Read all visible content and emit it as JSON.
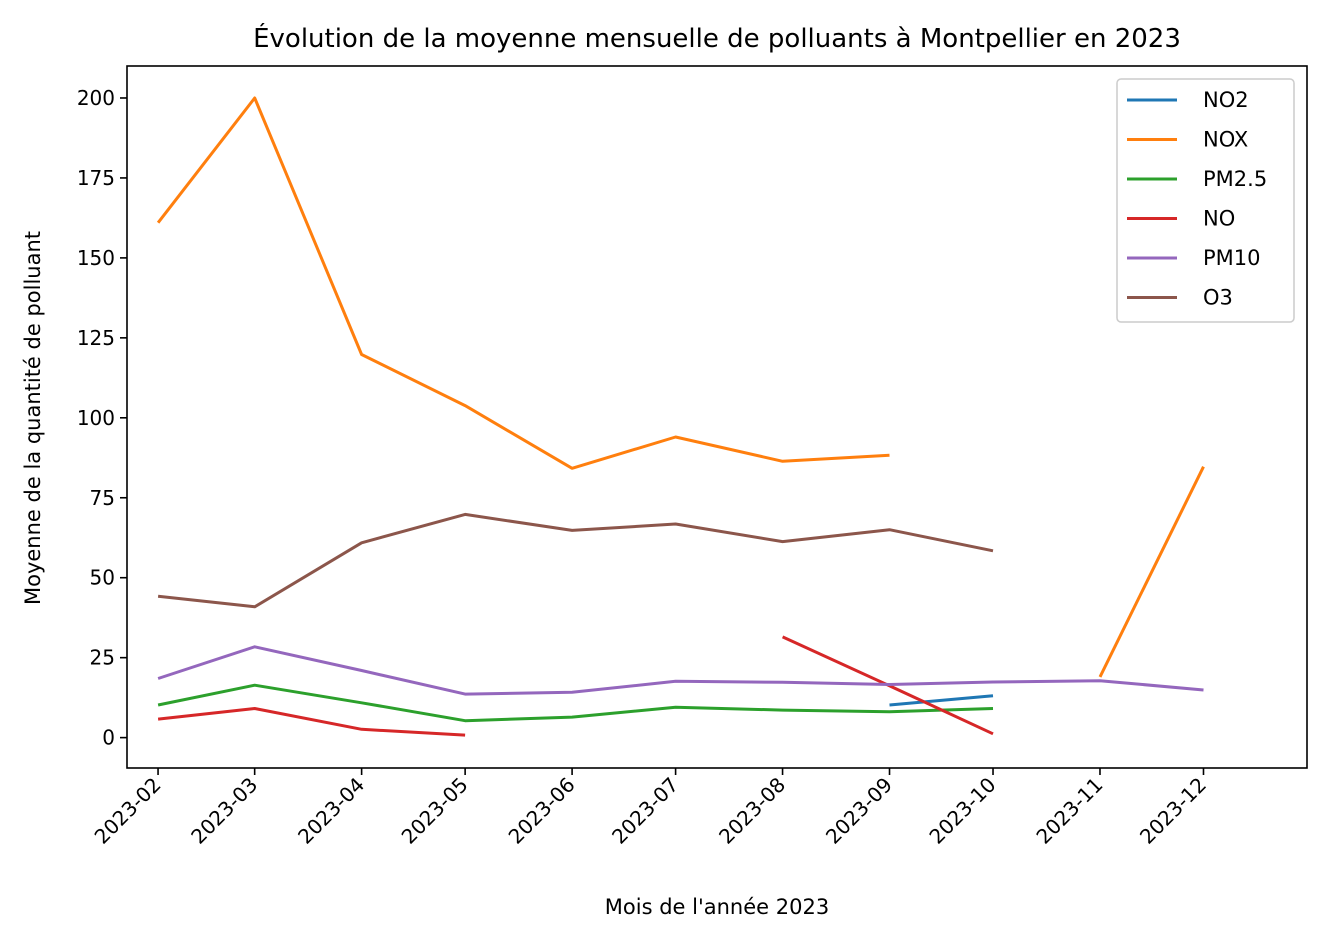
{
  "chart_data": {
    "type": "line",
    "title": "Évolution de la moyenne mensuelle de polluants à Montpellier en 2023",
    "xlabel": "Mois de l'année 2023",
    "ylabel": "Moyenne de la quantité de polluant",
    "x": [
      "2023-02-01",
      "2023-03-01",
      "2023-04-01",
      "2023-05-01",
      "2023-06-01",
      "2023-07-01",
      "2023-08-01",
      "2023-09-01",
      "2023-10-01",
      "2023-11-01",
      "2023-12-01"
    ],
    "x_tick_labels": [
      "2023-02",
      "2023-03",
      "2023-04",
      "2023-05",
      "2023-06",
      "2023-07",
      "2023-08",
      "2023-09",
      "2023-10",
      "2023-11",
      "2023-12"
    ],
    "y_ticks": [
      0,
      25,
      50,
      75,
      100,
      125,
      150,
      175,
      200
    ],
    "ylim": [
      -9.5,
      210
    ],
    "xlim": [
      "2023-01-23",
      "2023-12-31"
    ],
    "grid": false,
    "legend_position": "top-right",
    "series": [
      {
        "name": "NO2",
        "color": "#1f77b4",
        "points": [
          {
            "x": "2023-09-01",
            "y": 10.2
          },
          {
            "x": "2023-10-01",
            "y": 13.1
          }
        ]
      },
      {
        "name": "NOX",
        "color": "#ff7f0e",
        "points": [
          {
            "x": "2023-02-01",
            "y": 161
          },
          {
            "x": "2023-03-01",
            "y": 200
          },
          {
            "x": "2023-04-01",
            "y": 119.8
          },
          {
            "x": "2023-05-01",
            "y": 103.8
          },
          {
            "x": "2023-06-01",
            "y": 84.2
          },
          {
            "x": "2023-07-01",
            "y": 94.0
          },
          {
            "x": "2023-08-01",
            "y": 86.4
          },
          {
            "x": "2023-09-01",
            "y": 88.3
          },
          {
            "x": "2023-10-01",
            "y": null
          },
          {
            "x": "2023-11-01",
            "y": 19.0
          },
          {
            "x": "2023-12-01",
            "y": 84.7
          }
        ]
      },
      {
        "name": "PM2.5",
        "color": "#2ca02c",
        "points": [
          {
            "x": "2023-02-01",
            "y": 10.2
          },
          {
            "x": "2023-03-01",
            "y": 16.4
          },
          {
            "x": "2023-04-01",
            "y": 10.9
          },
          {
            "x": "2023-05-01",
            "y": 5.3
          },
          {
            "x": "2023-06-01",
            "y": 6.4
          },
          {
            "x": "2023-07-01",
            "y": 9.5
          },
          {
            "x": "2023-08-01",
            "y": 8.6
          },
          {
            "x": "2023-09-01",
            "y": 8.1
          },
          {
            "x": "2023-10-01",
            "y": 9.1
          }
        ]
      },
      {
        "name": "NO",
        "color": "#d62728",
        "points": [
          {
            "x": "2023-02-01",
            "y": 5.8
          },
          {
            "x": "2023-03-01",
            "y": 9.1
          },
          {
            "x": "2023-04-01",
            "y": 2.6
          },
          {
            "x": "2023-05-01",
            "y": 0.8
          },
          {
            "x": "2023-06-01",
            "y": null
          },
          {
            "x": "2023-07-01",
            "y": null
          },
          {
            "x": "2023-08-01",
            "y": 31.5
          },
          {
            "x": "2023-09-01",
            "y": 16.2
          },
          {
            "x": "2023-10-01",
            "y": 1.2
          }
        ]
      },
      {
        "name": "PM10",
        "color": "#9467bd",
        "points": [
          {
            "x": "2023-02-01",
            "y": 18.5
          },
          {
            "x": "2023-03-01",
            "y": 28.4
          },
          {
            "x": "2023-04-01",
            "y": 21.0
          },
          {
            "x": "2023-05-01",
            "y": 13.6
          },
          {
            "x": "2023-06-01",
            "y": 14.2
          },
          {
            "x": "2023-07-01",
            "y": 17.6
          },
          {
            "x": "2023-08-01",
            "y": 17.3
          },
          {
            "x": "2023-09-01",
            "y": 16.6
          },
          {
            "x": "2023-10-01",
            "y": 17.4
          },
          {
            "x": "2023-11-01",
            "y": 17.8
          },
          {
            "x": "2023-12-01",
            "y": 14.9
          }
        ]
      },
      {
        "name": "O3",
        "color": "#8c564b",
        "points": [
          {
            "x": "2023-02-01",
            "y": 44.2
          },
          {
            "x": "2023-03-01",
            "y": 40.9
          },
          {
            "x": "2023-04-01",
            "y": 60.9
          },
          {
            "x": "2023-05-01",
            "y": 69.8
          },
          {
            "x": "2023-06-01",
            "y": 64.8
          },
          {
            "x": "2023-07-01",
            "y": 66.8
          },
          {
            "x": "2023-08-01",
            "y": 61.3
          },
          {
            "x": "2023-09-01",
            "y": 65.0
          },
          {
            "x": "2023-10-01",
            "y": 58.4
          }
        ]
      }
    ]
  }
}
